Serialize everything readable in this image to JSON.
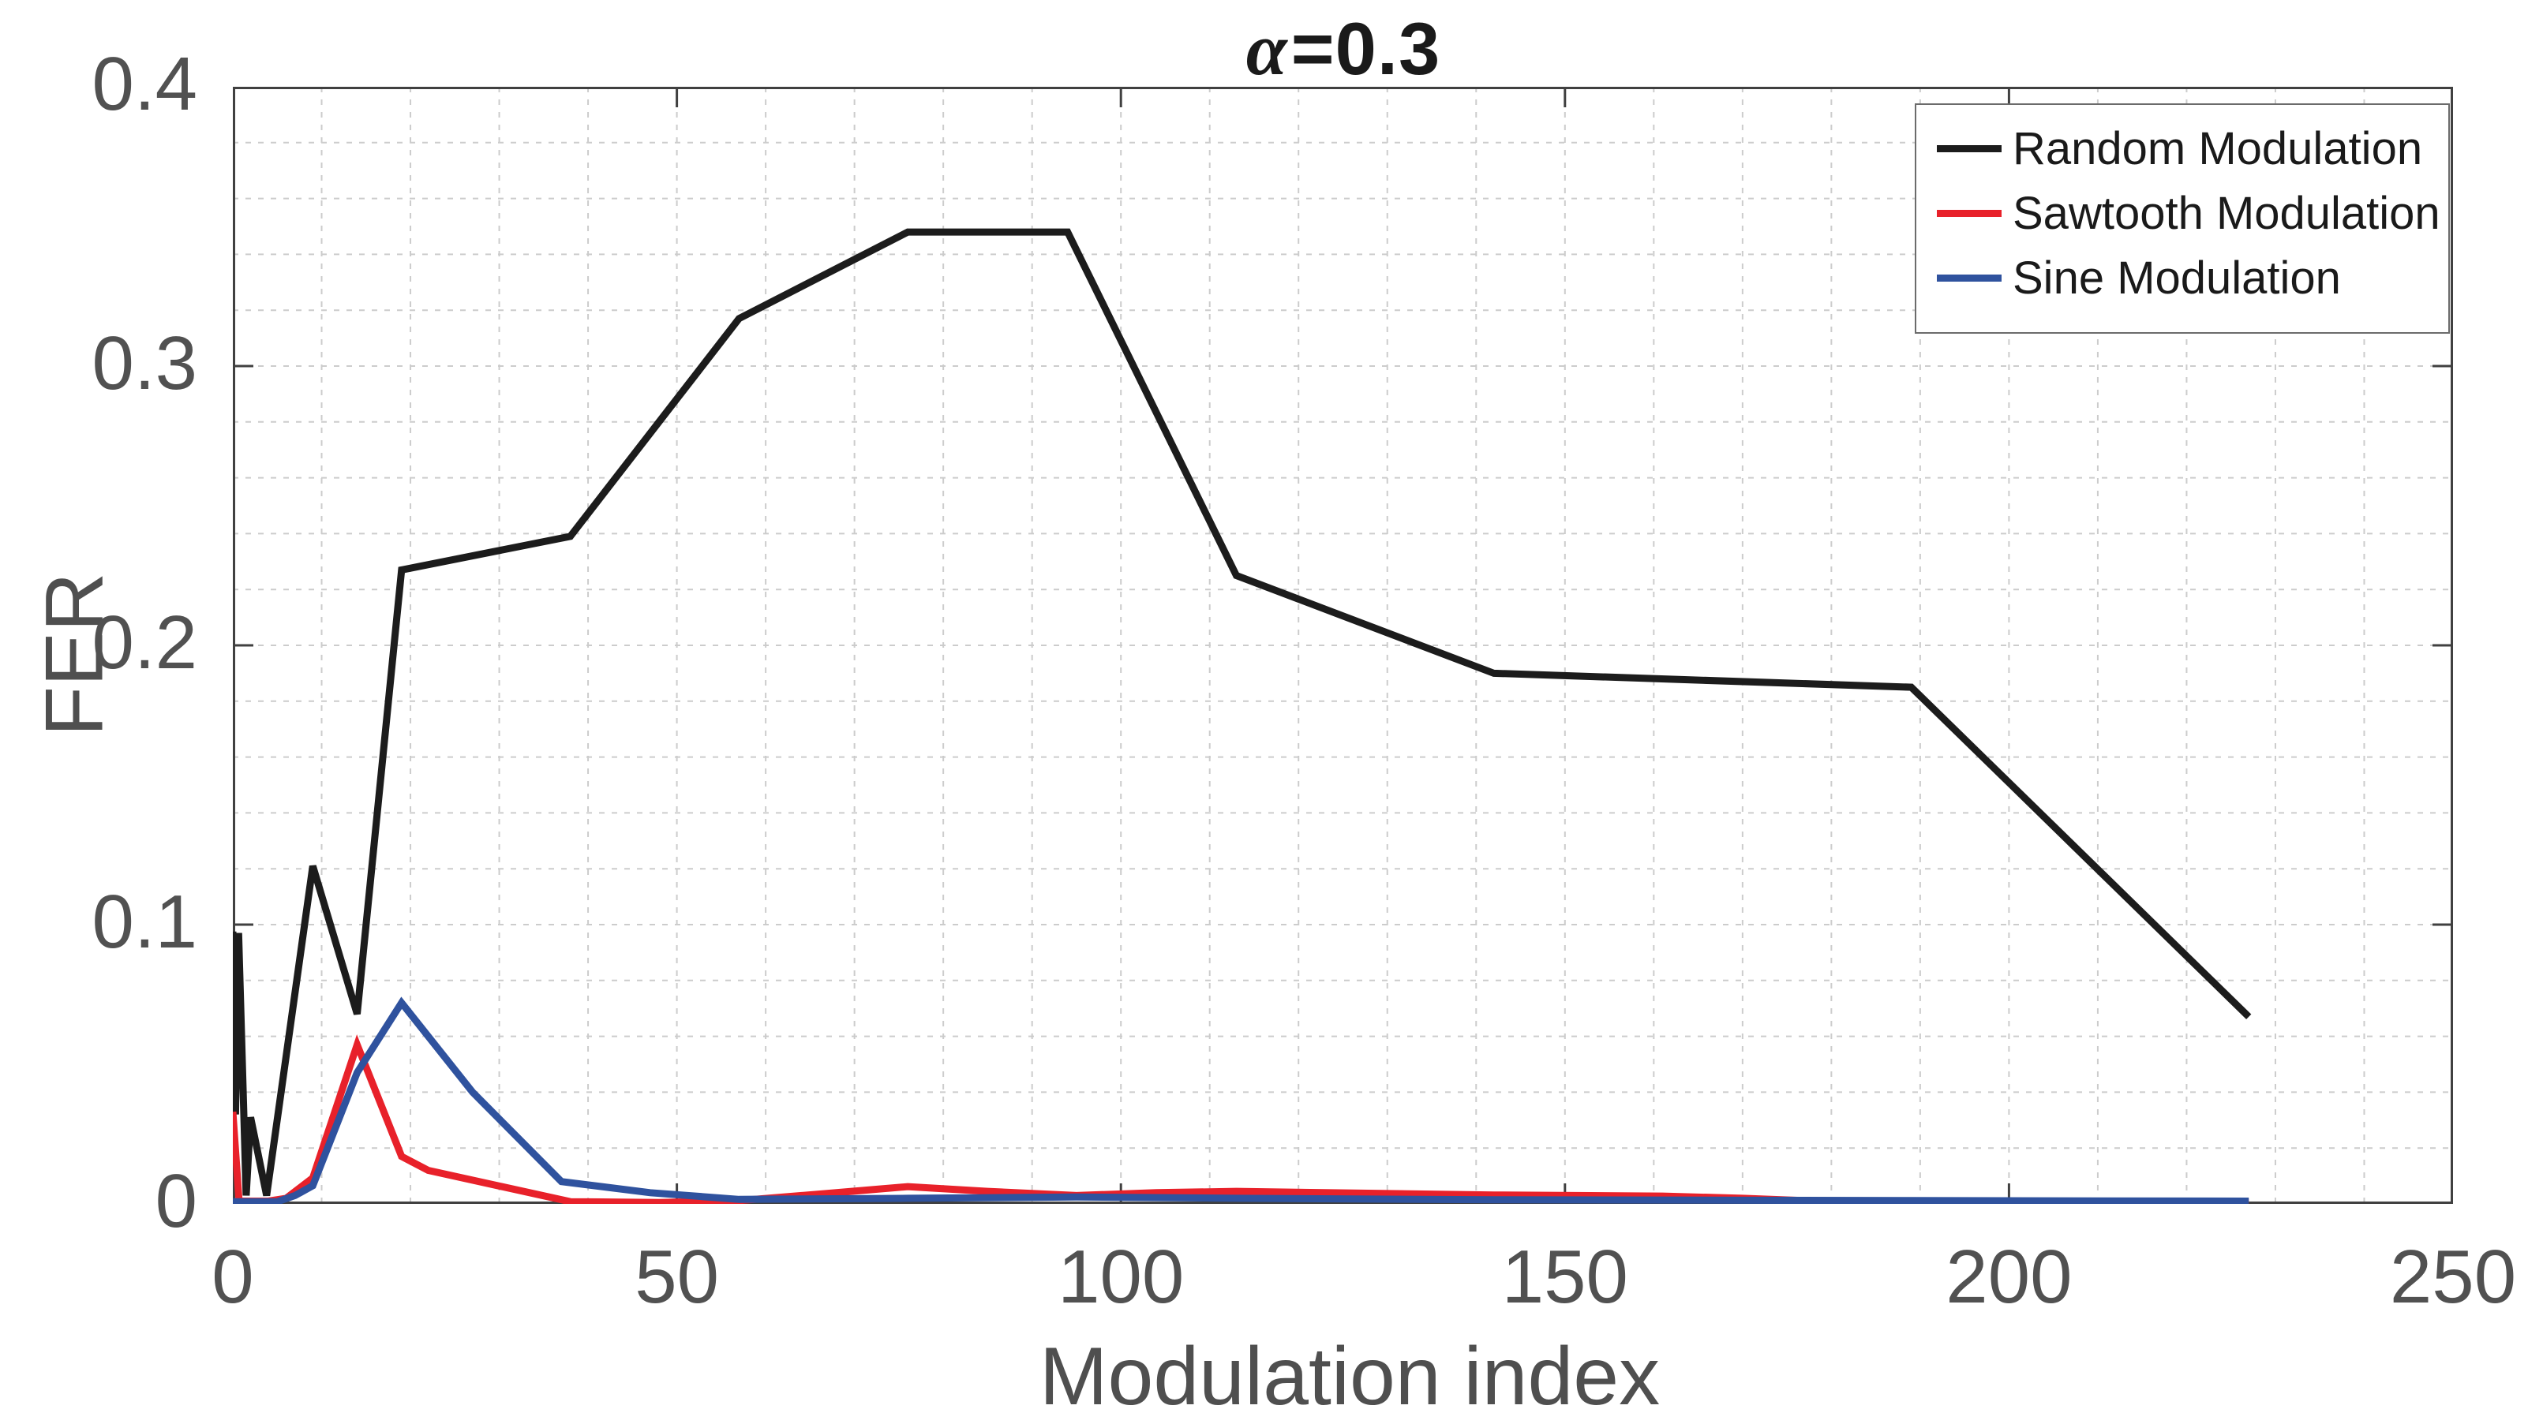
{
  "title": {
    "alpha": "α",
    "rest": "=0.3"
  },
  "axes": {
    "ylabel": "FER",
    "xlabel": "Modulation index",
    "x_tick_labels": [
      "0",
      "50",
      "100",
      "150",
      "200",
      "250"
    ],
    "y_tick_labels": [
      "0",
      "0.1",
      "0.2",
      "0.3",
      "0.4"
    ]
  },
  "colors": {
    "random": "#1c1c1c",
    "sawtooth": "#e8212a",
    "sine": "#2f529e",
    "grid": "#cccccc",
    "axis": "#404040",
    "text": "#515151"
  },
  "chart_data": {
    "type": "line",
    "title": "α=0.3",
    "xlabel": "Modulation index",
    "ylabel": "FER",
    "xlim": [
      0,
      250
    ],
    "ylim": [
      0,
      0.4
    ],
    "x_major_ticks": [
      0,
      50,
      100,
      150,
      200,
      250
    ],
    "y_major_ticks": [
      0,
      0.1,
      0.2,
      0.3,
      0.4
    ],
    "x_minor_grid_step": 10,
    "y_minor_grid_step": 0.02,
    "grid": "minor dashed gray, box on, ticks inward on all sides",
    "legend_position": "northeast",
    "series": [
      {
        "name": "random-modulation",
        "label": "Random Modulation",
        "color": "#1c1c1c",
        "points": [
          [
            0,
            0.0975
          ],
          [
            0.3,
            0.032
          ],
          [
            0.65,
            0.097
          ],
          [
            1.5,
            0.003
          ],
          [
            2,
            0.031
          ],
          [
            3.8,
            0.003
          ],
          [
            9,
            0.121
          ],
          [
            14,
            0.068
          ],
          [
            19,
            0.227
          ],
          [
            38,
            0.239
          ],
          [
            57,
            0.317
          ],
          [
            76,
            0.348
          ],
          [
            94,
            0.348
          ],
          [
            113,
            0.225
          ],
          [
            142,
            0.19
          ],
          [
            189,
            0.185
          ],
          [
            227,
            0.067
          ]
        ]
      },
      {
        "name": "sawtooth-modulation",
        "label": "Sawtooth Modulation",
        "color": "#e8212a",
        "points": [
          [
            0,
            0.033
          ],
          [
            0.7,
            0.001
          ],
          [
            4,
            0.001
          ],
          [
            6,
            0.002
          ],
          [
            9,
            0.0093
          ],
          [
            14,
            0.057
          ],
          [
            19,
            0.017
          ],
          [
            22,
            0.012
          ],
          [
            38,
            0.0008
          ],
          [
            48,
            0.0005
          ],
          [
            57,
            0.0012
          ],
          [
            66,
            0.0035
          ],
          [
            76,
            0.0062
          ],
          [
            85,
            0.0045
          ],
          [
            95,
            0.003
          ],
          [
            104,
            0.004
          ],
          [
            113,
            0.0045
          ],
          [
            123,
            0.004
          ],
          [
            142,
            0.0032
          ],
          [
            161,
            0.0028
          ],
          [
            170,
            0.002
          ],
          [
            180,
            0.0008
          ],
          [
            200,
            0.0006
          ],
          [
            227,
            0.0006
          ]
        ]
      },
      {
        "name": "sine-modulation",
        "label": "Sine Modulation",
        "color": "#2f529e",
        "points": [
          [
            0,
            0.0008
          ],
          [
            5,
            0.0008
          ],
          [
            7,
            0.003
          ],
          [
            9,
            0.0065
          ],
          [
            14,
            0.047
          ],
          [
            19,
            0.072
          ],
          [
            27,
            0.04
          ],
          [
            37,
            0.008
          ],
          [
            47,
            0.004
          ],
          [
            57,
            0.0016
          ],
          [
            76,
            0.002
          ],
          [
            95,
            0.0025
          ],
          [
            113,
            0.002
          ],
          [
            142,
            0.0015
          ],
          [
            170,
            0.0013
          ],
          [
            189,
            0.0012
          ],
          [
            227,
            0.001
          ]
        ]
      }
    ]
  }
}
